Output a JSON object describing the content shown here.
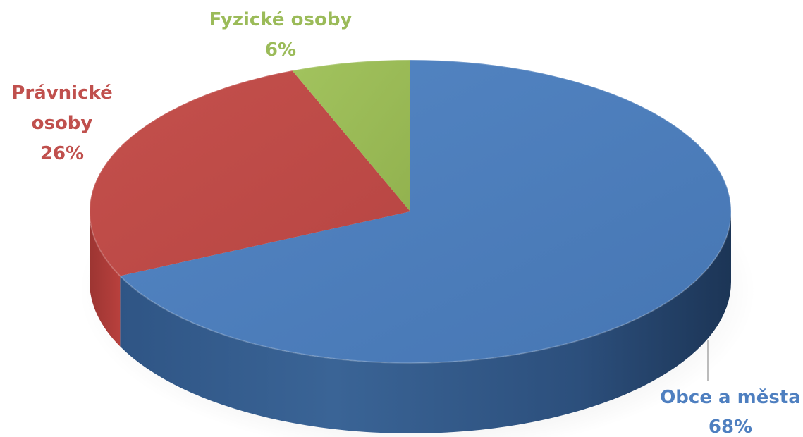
{
  "chart_data": {
    "type": "pie",
    "title": "",
    "slices": [
      {
        "name": "Obce a města",
        "value": 68,
        "label": "68%",
        "color": "#4a7ebb"
      },
      {
        "name": "Právnické osoby",
        "value": 26,
        "label": "26%",
        "color": "#be4b48"
      },
      {
        "name": "Fyzické osoby",
        "value": 6,
        "label": "6%",
        "color": "#98b954"
      }
    ],
    "legend": "none",
    "style": "3d"
  }
}
